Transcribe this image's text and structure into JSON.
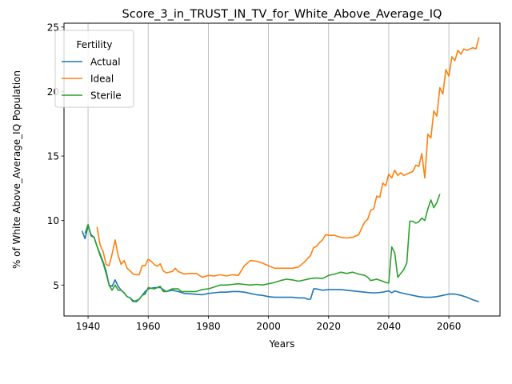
{
  "chart_data": {
    "type": "line",
    "title": "Score_3_in_TRUST_IN_TV_for_White_Above_Average_IQ",
    "xlabel": "Years",
    "ylabel": "% of White Above_Average_IQ Population",
    "xlim": [
      1932,
      2077
    ],
    "ylim": [
      2.6,
      25.3
    ],
    "xticks": [
      1940,
      1960,
      1980,
      2000,
      2020,
      2040,
      2060
    ],
    "yticks": [
      5,
      10,
      15,
      20,
      25
    ],
    "grid": "vertical",
    "legend": {
      "title": "Fertility",
      "placement": "top-left"
    },
    "series": [
      {
        "name": "Actual",
        "color": "#1f77b4",
        "points": [
          [
            1938,
            9.2
          ],
          [
            1939,
            8.6
          ],
          [
            1940,
            9.6
          ],
          [
            1941,
            8.9
          ],
          [
            1942,
            8.7
          ],
          [
            1943,
            8.0
          ],
          [
            1944,
            7.4
          ],
          [
            1945,
            6.8
          ],
          [
            1946,
            6.1
          ],
          [
            1947,
            5.0
          ],
          [
            1948,
            4.9
          ],
          [
            1949,
            5.4
          ],
          [
            1950,
            4.9
          ],
          [
            1951,
            4.6
          ],
          [
            1952,
            4.4
          ],
          [
            1953,
            4.1
          ],
          [
            1954,
            4.0
          ],
          [
            1955,
            3.8
          ],
          [
            1956,
            3.7
          ],
          [
            1957,
            3.9
          ],
          [
            1958,
            4.2
          ],
          [
            1959,
            4.5
          ],
          [
            1960,
            4.7
          ],
          [
            1962,
            4.8
          ],
          [
            1964,
            4.8
          ],
          [
            1966,
            4.5
          ],
          [
            1968,
            4.6
          ],
          [
            1970,
            4.5
          ],
          [
            1972,
            4.35
          ],
          [
            1975,
            4.3
          ],
          [
            1978,
            4.25
          ],
          [
            1980,
            4.35
          ],
          [
            1982,
            4.4
          ],
          [
            1984,
            4.45
          ],
          [
            1986,
            4.45
          ],
          [
            1988,
            4.5
          ],
          [
            1990,
            4.5
          ],
          [
            1992,
            4.45
          ],
          [
            1994,
            4.35
          ],
          [
            1996,
            4.25
          ],
          [
            1998,
            4.2
          ],
          [
            2000,
            4.1
          ],
          [
            2002,
            4.05
          ],
          [
            2004,
            4.05
          ],
          [
            2006,
            4.05
          ],
          [
            2008,
            4.05
          ],
          [
            2010,
            4.0
          ],
          [
            2012,
            4.0
          ],
          [
            2013,
            3.9
          ],
          [
            2014,
            3.9
          ],
          [
            2015,
            4.7
          ],
          [
            2016,
            4.7
          ],
          [
            2018,
            4.6
          ],
          [
            2020,
            4.65
          ],
          [
            2022,
            4.65
          ],
          [
            2024,
            4.65
          ],
          [
            2026,
            4.6
          ],
          [
            2028,
            4.55
          ],
          [
            2030,
            4.5
          ],
          [
            2032,
            4.45
          ],
          [
            2034,
            4.4
          ],
          [
            2036,
            4.4
          ],
          [
            2038,
            4.45
          ],
          [
            2040,
            4.55
          ],
          [
            2041,
            4.4
          ],
          [
            2042,
            4.55
          ],
          [
            2044,
            4.4
          ],
          [
            2046,
            4.3
          ],
          [
            2048,
            4.2
          ],
          [
            2050,
            4.1
          ],
          [
            2052,
            4.05
          ],
          [
            2054,
            4.05
          ],
          [
            2056,
            4.1
          ],
          [
            2058,
            4.2
          ],
          [
            2060,
            4.3
          ],
          [
            2062,
            4.3
          ],
          [
            2064,
            4.2
          ],
          [
            2066,
            4.05
          ],
          [
            2068,
            3.85
          ],
          [
            2070,
            3.7
          ]
        ]
      },
      {
        "name": "Ideal",
        "color": "#ff7f0e",
        "points": [
          [
            1943,
            9.5
          ],
          [
            1944,
            8.1
          ],
          [
            1945,
            7.6
          ],
          [
            1946,
            6.6
          ],
          [
            1947,
            6.5
          ],
          [
            1948,
            7.4
          ],
          [
            1949,
            8.5
          ],
          [
            1950,
            7.3
          ],
          [
            1951,
            6.6
          ],
          [
            1952,
            6.9
          ],
          [
            1953,
            6.3
          ],
          [
            1954,
            6.1
          ],
          [
            1955,
            5.85
          ],
          [
            1956,
            5.8
          ],
          [
            1957,
            5.8
          ],
          [
            1958,
            6.5
          ],
          [
            1959,
            6.5
          ],
          [
            1960,
            7.0
          ],
          [
            1961,
            6.85
          ],
          [
            1962,
            6.6
          ],
          [
            1963,
            6.45
          ],
          [
            1964,
            6.65
          ],
          [
            1965,
            6.1
          ],
          [
            1966,
            5.95
          ],
          [
            1968,
            6.05
          ],
          [
            1969,
            6.3
          ],
          [
            1970,
            6.05
          ],
          [
            1972,
            5.85
          ],
          [
            1974,
            5.9
          ],
          [
            1976,
            5.9
          ],
          [
            1978,
            5.6
          ],
          [
            1980,
            5.75
          ],
          [
            1982,
            5.7
          ],
          [
            1984,
            5.8
          ],
          [
            1986,
            5.7
          ],
          [
            1988,
            5.8
          ],
          [
            1990,
            5.75
          ],
          [
            1992,
            6.5
          ],
          [
            1994,
            6.9
          ],
          [
            1996,
            6.85
          ],
          [
            1998,
            6.7
          ],
          [
            2000,
            6.5
          ],
          [
            2002,
            6.3
          ],
          [
            2004,
            6.3
          ],
          [
            2006,
            6.3
          ],
          [
            2008,
            6.3
          ],
          [
            2010,
            6.4
          ],
          [
            2012,
            6.8
          ],
          [
            2014,
            7.3
          ],
          [
            2015,
            7.9
          ],
          [
            2016,
            8.0
          ],
          [
            2017,
            8.3
          ],
          [
            2018,
            8.5
          ],
          [
            2019,
            8.9
          ],
          [
            2020,
            8.85
          ],
          [
            2022,
            8.85
          ],
          [
            2024,
            8.7
          ],
          [
            2026,
            8.65
          ],
          [
            2028,
            8.7
          ],
          [
            2030,
            8.9
          ],
          [
            2032,
            9.9
          ],
          [
            2033,
            10.1
          ],
          [
            2034,
            10.8
          ],
          [
            2035,
            10.9
          ],
          [
            2036,
            11.9
          ],
          [
            2037,
            11.8
          ],
          [
            2038,
            12.9
          ],
          [
            2039,
            12.7
          ],
          [
            2040,
            13.6
          ],
          [
            2041,
            13.3
          ],
          [
            2042,
            13.9
          ],
          [
            2043,
            13.5
          ],
          [
            2044,
            13.7
          ],
          [
            2045,
            13.5
          ],
          [
            2046,
            13.6
          ],
          [
            2047,
            13.7
          ],
          [
            2048,
            13.8
          ],
          [
            2049,
            14.3
          ],
          [
            2050,
            14.2
          ],
          [
            2051,
            15.2
          ],
          [
            2052,
            13.3
          ],
          [
            2053,
            16.7
          ],
          [
            2054,
            16.4
          ],
          [
            2055,
            18.5
          ],
          [
            2056,
            18.1
          ],
          [
            2057,
            20.3
          ],
          [
            2058,
            19.8
          ],
          [
            2059,
            21.7
          ],
          [
            2060,
            21.2
          ],
          [
            2061,
            22.7
          ],
          [
            2062,
            22.4
          ],
          [
            2063,
            23.2
          ],
          [
            2064,
            22.9
          ],
          [
            2065,
            23.3
          ],
          [
            2066,
            23.2
          ],
          [
            2067,
            23.3
          ],
          [
            2068,
            23.4
          ],
          [
            2069,
            23.3
          ],
          [
            2070,
            24.2
          ]
        ]
      },
      {
        "name": "Sterile",
        "color": "#2ca02c",
        "points": [
          [
            1939,
            9.0
          ],
          [
            1940,
            9.7
          ],
          [
            1941,
            8.8
          ],
          [
            1942,
            8.7
          ],
          [
            1943,
            8.0
          ],
          [
            1944,
            7.3
          ],
          [
            1945,
            6.7
          ],
          [
            1946,
            5.9
          ],
          [
            1947,
            5.0
          ],
          [
            1948,
            4.6
          ],
          [
            1949,
            5.0
          ],
          [
            1950,
            4.6
          ],
          [
            1951,
            4.6
          ],
          [
            1952,
            4.4
          ],
          [
            1953,
            4.1
          ],
          [
            1954,
            4.0
          ],
          [
            1955,
            3.7
          ],
          [
            1956,
            3.8
          ],
          [
            1957,
            3.9
          ],
          [
            1958,
            4.2
          ],
          [
            1959,
            4.3
          ],
          [
            1960,
            4.8
          ],
          [
            1962,
            4.7
          ],
          [
            1964,
            4.9
          ],
          [
            1965,
            4.5
          ],
          [
            1966,
            4.5
          ],
          [
            1968,
            4.7
          ],
          [
            1970,
            4.7
          ],
          [
            1971,
            4.5
          ],
          [
            1974,
            4.5
          ],
          [
            1976,
            4.5
          ],
          [
            1978,
            4.65
          ],
          [
            1980,
            4.7
          ],
          [
            1982,
            4.85
          ],
          [
            1984,
            5.0
          ],
          [
            1986,
            5.0
          ],
          [
            1988,
            5.05
          ],
          [
            1990,
            5.1
          ],
          [
            1992,
            5.05
          ],
          [
            1994,
            5.0
          ],
          [
            1996,
            5.05
          ],
          [
            1998,
            5.0
          ],
          [
            2000,
            5.1
          ],
          [
            2002,
            5.2
          ],
          [
            2004,
            5.35
          ],
          [
            2006,
            5.45
          ],
          [
            2008,
            5.4
          ],
          [
            2010,
            5.3
          ],
          [
            2012,
            5.4
          ],
          [
            2014,
            5.5
          ],
          [
            2016,
            5.55
          ],
          [
            2018,
            5.5
          ],
          [
            2020,
            5.75
          ],
          [
            2022,
            5.85
          ],
          [
            2024,
            6.0
          ],
          [
            2026,
            5.9
          ],
          [
            2028,
            6.0
          ],
          [
            2030,
            5.85
          ],
          [
            2032,
            5.75
          ],
          [
            2033,
            5.6
          ],
          [
            2034,
            5.35
          ],
          [
            2036,
            5.45
          ],
          [
            2038,
            5.3
          ],
          [
            2039,
            5.2
          ],
          [
            2040,
            5.15
          ],
          [
            2041,
            7.95
          ],
          [
            2042,
            7.5
          ],
          [
            2043,
            5.6
          ],
          [
            2044,
            5.9
          ],
          [
            2045,
            6.2
          ],
          [
            2046,
            6.7
          ],
          [
            2047,
            9.95
          ],
          [
            2048,
            9.95
          ],
          [
            2049,
            9.8
          ],
          [
            2050,
            9.9
          ],
          [
            2051,
            10.2
          ],
          [
            2052,
            10.0
          ],
          [
            2053,
            10.9
          ],
          [
            2054,
            11.6
          ],
          [
            2055,
            11.0
          ],
          [
            2056,
            11.4
          ],
          [
            2057,
            12.05
          ]
        ]
      }
    ]
  }
}
